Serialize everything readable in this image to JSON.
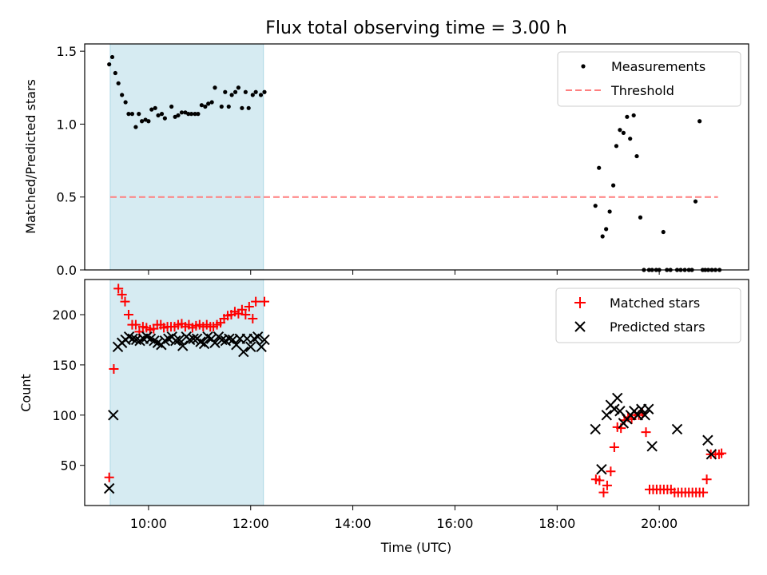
{
  "title": "Flux total observing time = 3.00 h",
  "colors": {
    "measurements": "#000000",
    "threshold": "#ff7f7f",
    "matched": "#ff0000",
    "predicted": "#000000",
    "shade": "#add8e6"
  },
  "chart_data": [
    {
      "type": "scatter",
      "ylabel": "Matched/Predicted stars",
      "ylim": [
        0,
        1.55
      ],
      "xlim": [
        8.75,
        21.75
      ],
      "yticks": [
        0.0,
        0.5,
        1.0,
        1.5
      ],
      "ytick_labels": [
        "0.0",
        "0.5",
        "1.0",
        "1.5"
      ],
      "xticks": [
        10,
        12,
        14,
        16,
        18,
        20
      ],
      "shaded_interval": [
        9.25,
        12.25
      ],
      "legend": {
        "position": "top-right",
        "entries": [
          "Measurements",
          "Threshold"
        ]
      },
      "series": [
        {
          "name": "Measurements",
          "marker": "dot",
          "x": [
            9.23,
            9.29,
            9.35,
            9.41,
            9.48,
            9.55,
            9.61,
            9.68,
            9.75,
            9.81,
            9.87,
            9.94,
            10.0,
            10.06,
            10.13,
            10.19,
            10.26,
            10.32,
            10.45,
            10.52,
            10.58,
            10.65,
            10.72,
            10.78,
            10.84,
            10.91,
            10.97,
            11.04,
            11.11,
            11.17,
            11.24,
            11.3,
            11.43,
            11.5,
            11.57,
            11.63,
            11.7,
            11.76,
            11.83,
            11.9,
            11.96,
            12.04,
            12.1,
            12.2,
            12.27,
            18.75,
            18.82,
            18.89,
            18.96,
            19.03,
            19.1,
            19.16,
            19.23,
            19.3,
            19.37,
            19.43,
            19.5,
            19.56,
            19.63,
            19.7,
            19.8,
            19.86,
            19.94,
            20.0,
            20.08,
            20.15,
            20.22,
            20.35,
            20.42,
            20.5,
            20.58,
            20.64,
            20.71,
            20.79,
            20.85,
            20.9,
            20.96,
            21.03,
            21.1,
            21.18
          ],
          "y": [
            1.41,
            1.46,
            1.35,
            1.28,
            1.2,
            1.15,
            1.07,
            1.07,
            0.98,
            1.07,
            1.02,
            1.03,
            1.02,
            1.1,
            1.11,
            1.06,
            1.07,
            1.04,
            1.12,
            1.05,
            1.06,
            1.08,
            1.08,
            1.07,
            1.07,
            1.07,
            1.07,
            1.13,
            1.12,
            1.14,
            1.15,
            1.25,
            1.12,
            1.22,
            1.12,
            1.2,
            1.22,
            1.25,
            1.11,
            1.22,
            1.11,
            1.2,
            1.22,
            1.2,
            1.22,
            0.44,
            0.7,
            0.23,
            0.28,
            0.4,
            0.58,
            0.85,
            0.96,
            0.94,
            1.05,
            0.9,
            1.06,
            0.78,
            0.36,
            0.0,
            0.0,
            0.0,
            0.0,
            0.0,
            0.26,
            0.0,
            0.0,
            0.0,
            0.0,
            0.0,
            0.0,
            0.0,
            0.47,
            1.02,
            0.0,
            0.0,
            0.0,
            0.0,
            0.0,
            0.0
          ]
        },
        {
          "name": "Threshold",
          "line": "dashed",
          "x": [
            9.25,
            21.15
          ],
          "y": [
            0.5,
            0.5
          ]
        }
      ]
    },
    {
      "type": "scatter",
      "xlabel": "Time (UTC)",
      "ylabel": "Count",
      "ylim": [
        10,
        235
      ],
      "xlim": [
        8.75,
        21.75
      ],
      "yticks": [
        50,
        100,
        150,
        200
      ],
      "ytick_labels": [
        "50",
        "100",
        "150",
        "200"
      ],
      "xticks": [
        10,
        12,
        14,
        16,
        18,
        20
      ],
      "xtick_labels": [
        "10:00",
        "12:00",
        "14:00",
        "16:00",
        "18:00",
        "20:00"
      ],
      "shaded_interval": [
        9.25,
        12.25
      ],
      "legend": {
        "position": "top-right",
        "entries": [
          "Matched stars",
          "Predicted stars"
        ]
      },
      "series": [
        {
          "name": "Matched stars",
          "marker": "plus",
          "x": [
            9.23,
            9.32,
            9.41,
            9.48,
            9.54,
            9.61,
            9.68,
            9.75,
            9.82,
            9.89,
            9.96,
            10.03,
            10.1,
            10.17,
            10.24,
            10.3,
            10.37,
            10.44,
            10.51,
            10.58,
            10.65,
            10.72,
            10.79,
            10.86,
            10.93,
            11.0,
            11.07,
            11.14,
            11.21,
            11.27,
            11.34,
            11.41,
            11.48,
            11.55,
            11.62,
            11.69,
            11.76,
            11.83,
            11.9,
            11.97,
            12.04,
            12.1,
            12.27,
            18.76,
            18.83,
            18.91,
            18.98,
            19.05,
            19.12,
            19.18,
            19.25,
            19.32,
            19.39,
            19.46,
            19.53,
            19.6,
            19.67,
            19.74,
            19.81,
            19.88,
            19.95,
            20.02,
            20.09,
            20.16,
            20.23,
            20.3,
            20.37,
            20.44,
            20.51,
            20.58,
            20.65,
            20.72,
            20.79,
            20.86,
            20.93,
            21.01,
            21.1,
            21.17,
            21.22
          ],
          "y": [
            38,
            146,
            226,
            220,
            213,
            200,
            190,
            190,
            183,
            188,
            187,
            185,
            186,
            190,
            190,
            187,
            188,
            188,
            188,
            190,
            191,
            188,
            190,
            187,
            189,
            190,
            188,
            190,
            188,
            188,
            190,
            192,
            196,
            199,
            200,
            203,
            201,
            205,
            200,
            208,
            196,
            213,
            213,
            36,
            35,
            23,
            30,
            44,
            68,
            88,
            87,
            95,
            98,
            96,
            100,
            100,
            102,
            83,
            26,
            26,
            26,
            26,
            26,
            26,
            26,
            23,
            23,
            23,
            23,
            23,
            23,
            23,
            23,
            23,
            36,
            61,
            61,
            61,
            62
          ]
        },
        {
          "name": "Predicted stars",
          "marker": "x",
          "x": [
            9.23,
            9.31,
            9.4,
            9.48,
            9.55,
            9.62,
            9.69,
            9.76,
            9.83,
            9.9,
            9.97,
            10.04,
            10.11,
            10.18,
            10.25,
            10.32,
            10.39,
            10.46,
            10.53,
            10.6,
            10.67,
            10.74,
            10.81,
            10.88,
            10.95,
            11.02,
            11.09,
            11.16,
            11.23,
            11.3,
            11.37,
            11.44,
            11.51,
            11.58,
            11.65,
            11.72,
            11.79,
            11.86,
            11.93,
            12.0,
            12.07,
            12.14,
            12.21,
            12.27,
            18.75,
            18.87,
            18.97,
            19.05,
            19.12,
            19.18,
            19.23,
            19.3,
            19.37,
            19.44,
            19.51,
            19.58,
            19.65,
            19.72,
            19.79,
            19.86,
            20.35,
            20.95,
            21.02
          ],
          "y": [
            27,
            100,
            168,
            172,
            175,
            178,
            176,
            175,
            174,
            176,
            178,
            176,
            174,
            172,
            170,
            174,
            176,
            178,
            174,
            175,
            169,
            178,
            175,
            176,
            176,
            173,
            171,
            178,
            176,
            172,
            178,
            175,
            174,
            176,
            175,
            170,
            176,
            163,
            176,
            168,
            176,
            178,
            168,
            175,
            86,
            46,
            100,
            110,
            106,
            117,
            104,
            92,
            96,
            100,
            104,
            100,
            106,
            100,
            106,
            69,
            86,
            75,
            61
          ]
        }
      ]
    }
  ]
}
